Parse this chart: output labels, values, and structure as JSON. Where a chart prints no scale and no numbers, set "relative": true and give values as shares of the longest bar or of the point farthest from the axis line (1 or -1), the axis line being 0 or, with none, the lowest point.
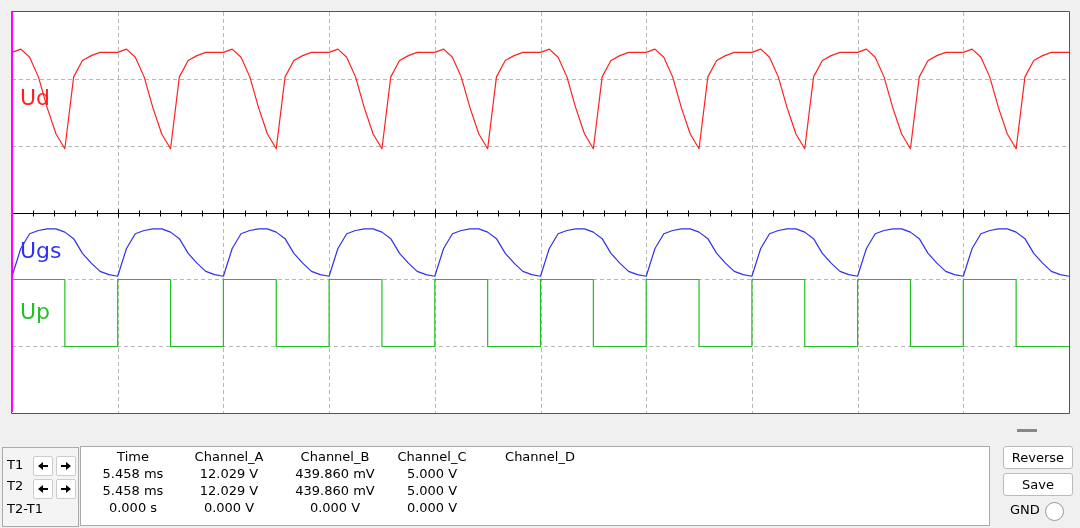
{
  "chart_data": {
    "type": "line",
    "relative": true,
    "grid": true,
    "legend": false,
    "marker": "none",
    "categories": [
      null,
      null,
      null,
      null,
      null,
      null,
      null,
      null,
      null,
      null,
      null,
      null,
      null,
      null,
      null,
      null,
      null,
      null,
      null,
      null,
      null,
      null,
      null,
      null,
      null,
      null,
      null,
      null,
      null,
      null,
      null,
      null,
      null,
      null,
      null,
      null,
      null,
      null,
      null,
      null,
      null,
      null,
      null,
      null,
      null,
      null,
      null,
      null,
      null,
      null,
      null,
      null,
      null,
      null,
      null,
      null,
      null,
      null,
      null,
      null,
      null,
      null,
      null,
      null,
      null,
      null,
      null,
      null,
      null,
      null,
      null,
      null,
      null,
      null,
      null,
      null,
      null,
      null,
      null,
      null,
      null,
      null,
      null,
      null,
      null,
      null,
      null,
      null,
      null,
      null,
      null,
      null,
      null,
      null,
      null,
      null,
      null,
      null,
      null,
      null,
      null,
      null,
      null,
      null,
      null,
      null,
      null,
      null,
      null,
      null,
      null,
      null,
      null,
      null,
      null,
      null,
      null,
      null,
      null,
      null,
      null
    ],
    "series": [
      {
        "name": "Ud",
        "color": "#ff2020",
        "values": [
          0.98,
          1.0,
          0.95,
          0.83,
          0.64,
          0.48,
          0.39,
          0.83,
          0.93,
          0.96,
          0.98,
          0.98,
          0.98,
          1.0,
          0.95,
          0.83,
          0.64,
          0.48,
          0.39,
          0.83,
          0.93,
          0.96,
          0.98,
          0.98,
          0.98,
          1.0,
          0.95,
          0.83,
          0.64,
          0.48,
          0.39,
          0.83,
          0.93,
          0.96,
          0.98,
          0.98,
          0.98,
          1.0,
          0.95,
          0.83,
          0.64,
          0.48,
          0.39,
          0.83,
          0.93,
          0.96,
          0.98,
          0.98,
          0.98,
          1.0,
          0.95,
          0.83,
          0.64,
          0.48,
          0.39,
          0.83,
          0.93,
          0.96,
          0.98,
          0.98,
          0.98,
          1.0,
          0.95,
          0.83,
          0.64,
          0.48,
          0.39,
          0.83,
          0.93,
          0.96,
          0.98,
          0.98,
          0.98,
          1.0,
          0.95,
          0.83,
          0.64,
          0.48,
          0.39,
          0.83,
          0.93,
          0.96,
          0.98,
          0.98,
          0.98,
          1.0,
          0.95,
          0.83,
          0.64,
          0.48,
          0.39,
          0.83,
          0.93,
          0.96,
          0.98,
          0.98,
          0.98,
          1.0,
          0.95,
          0.83,
          0.64,
          0.48,
          0.39,
          0.83,
          0.93,
          0.96,
          0.98,
          0.98,
          0.98,
          1.0,
          0.95,
          0.83,
          0.64,
          0.48,
          0.39,
          0.83,
          0.93,
          0.96,
          0.98,
          0.98,
          0.98
        ]
      },
      {
        "name": "Ugs",
        "color": "#3030ee",
        "values": [
          -0.39,
          -0.22,
          -0.13,
          -0.11,
          -0.1,
          -0.1,
          -0.12,
          -0.16,
          -0.25,
          -0.31,
          -0.36,
          -0.38,
          -0.39,
          -0.22,
          -0.13,
          -0.11,
          -0.1,
          -0.1,
          -0.12,
          -0.16,
          -0.25,
          -0.31,
          -0.36,
          -0.38,
          -0.39,
          -0.22,
          -0.13,
          -0.11,
          -0.1,
          -0.1,
          -0.12,
          -0.16,
          -0.25,
          -0.31,
          -0.36,
          -0.38,
          -0.39,
          -0.22,
          -0.13,
          -0.11,
          -0.1,
          -0.1,
          -0.12,
          -0.16,
          -0.25,
          -0.31,
          -0.36,
          -0.38,
          -0.39,
          -0.22,
          -0.13,
          -0.11,
          -0.1,
          -0.1,
          -0.12,
          -0.16,
          -0.25,
          -0.31,
          -0.36,
          -0.38,
          -0.39,
          -0.22,
          -0.13,
          -0.11,
          -0.1,
          -0.1,
          -0.12,
          -0.16,
          -0.25,
          -0.31,
          -0.36,
          -0.38,
          -0.39,
          -0.22,
          -0.13,
          -0.11,
          -0.1,
          -0.1,
          -0.12,
          -0.16,
          -0.25,
          -0.31,
          -0.36,
          -0.38,
          -0.39,
          -0.22,
          -0.13,
          -0.11,
          -0.1,
          -0.1,
          -0.12,
          -0.16,
          -0.25,
          -0.31,
          -0.36,
          -0.38,
          -0.39,
          -0.22,
          -0.13,
          -0.11,
          -0.1,
          -0.1,
          -0.12,
          -0.16,
          -0.25,
          -0.31,
          -0.36,
          -0.38,
          -0.39,
          -0.22,
          -0.13,
          -0.11,
          -0.1,
          -0.1,
          -0.12,
          -0.16,
          -0.25,
          -0.31,
          -0.36,
          -0.38,
          -0.39
        ]
      },
      {
        "name": "Up",
        "type": "step",
        "color": "#22c022",
        "values": [
          -0.41,
          -0.41,
          -0.41,
          -0.41,
          -0.41,
          -0.41,
          -0.82,
          -0.82,
          -0.82,
          -0.82,
          -0.82,
          -0.82,
          -0.41,
          -0.41,
          -0.41,
          -0.41,
          -0.41,
          -0.41,
          -0.82,
          -0.82,
          -0.82,
          -0.82,
          -0.82,
          -0.82,
          -0.41,
          -0.41,
          -0.41,
          -0.41,
          -0.41,
          -0.41,
          -0.82,
          -0.82,
          -0.82,
          -0.82,
          -0.82,
          -0.82,
          -0.41,
          -0.41,
          -0.41,
          -0.41,
          -0.41,
          -0.41,
          -0.82,
          -0.82,
          -0.82,
          -0.82,
          -0.82,
          -0.82,
          -0.41,
          -0.41,
          -0.41,
          -0.41,
          -0.41,
          -0.41,
          -0.82,
          -0.82,
          -0.82,
          -0.82,
          -0.82,
          -0.82,
          -0.41,
          -0.41,
          -0.41,
          -0.41,
          -0.41,
          -0.41,
          -0.82,
          -0.82,
          -0.82,
          -0.82,
          -0.82,
          -0.82,
          -0.41,
          -0.41,
          -0.41,
          -0.41,
          -0.41,
          -0.41,
          -0.82,
          -0.82,
          -0.82,
          -0.82,
          -0.82,
          -0.82,
          -0.41,
          -0.41,
          -0.41,
          -0.41,
          -0.41,
          -0.41,
          -0.82,
          -0.82,
          -0.82,
          -0.82,
          -0.82,
          -0.82,
          -0.41,
          -0.41,
          -0.41,
          -0.41,
          -0.41,
          -0.41,
          -0.82,
          -0.82,
          -0.82,
          -0.82,
          -0.82,
          -0.82,
          -0.41,
          -0.41,
          -0.41,
          -0.41,
          -0.41,
          -0.41,
          -0.82,
          -0.82,
          -0.82,
          -0.82,
          -0.82,
          -0.82,
          -0.82
        ]
      }
    ],
    "annotations": [
      "Time",
      "Channel_A",
      "Channel_B",
      "Channel_C",
      "Channel_D",
      "5.458 ms",
      "12.029 V",
      "439.860 mV",
      "5.000 V",
      "5.458 ms",
      "12.029 V",
      "439.860 mV",
      "5.000 V",
      "0.000 s",
      "0.000 V",
      "0.000 V",
      "0.000 V",
      "T1",
      "T2",
      "T2-T1",
      "Reverse",
      "Save",
      "GND"
    ]
  }
}
